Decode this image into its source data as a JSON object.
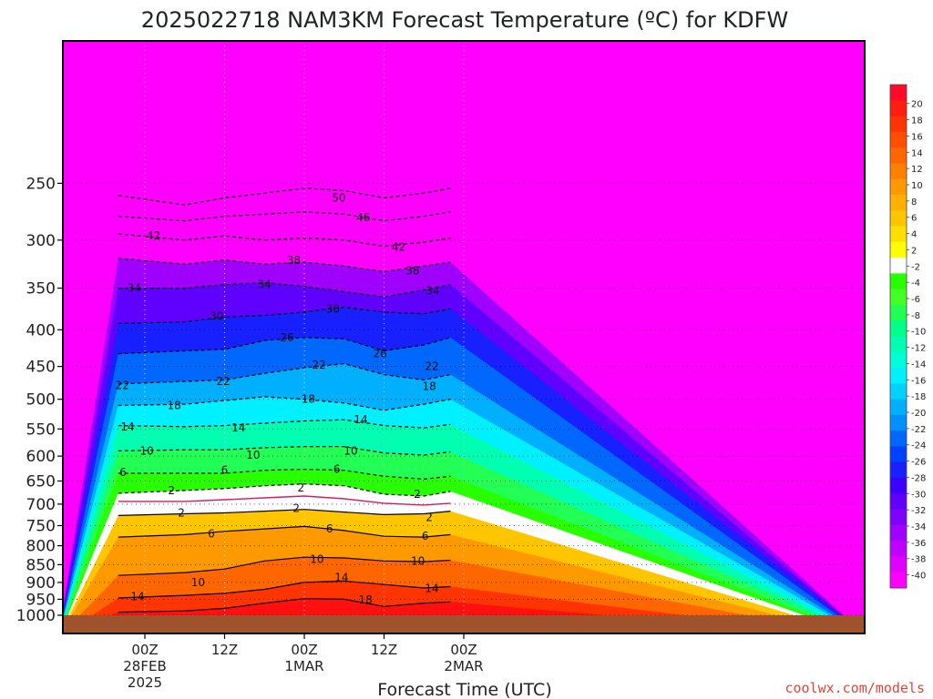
{
  "title": "2025022718 NAM3KM Forecast Temperature (ºC) for KDFW",
  "credit": "coolwx.com/models",
  "colors": {
    "ground": "#a0522d",
    "freezing_line": "#d81b60",
    "zero_band": "#ffffff"
  },
  "chart_data": {
    "type": "heatmap",
    "title": "2025022718 NAM3KM Forecast Temperature (ºC) for KDFW",
    "xlabel": "Forecast Time (UTC)",
    "ylabel": "",
    "x_range_hours": [
      -4,
      46
    ],
    "y_range_hPa": [
      200,
      1000
    ],
    "y_scale": "log",
    "grid": "dotted",
    "x_ticks": [
      {
        "hour": 0,
        "lines": [
          "00Z",
          "28FEB",
          "2025"
        ]
      },
      {
        "hour": 12,
        "lines": [
          "12Z"
        ]
      },
      {
        "hour": 24,
        "lines": [
          "00Z",
          "1MAR"
        ]
      },
      {
        "hour": 36,
        "lines": [
          "12Z"
        ]
      },
      {
        "hour": 48,
        "lines": [
          "00Z",
          "2MAR"
        ]
      }
    ],
    "y_ticks": [
      250,
      300,
      350,
      400,
      450,
      500,
      550,
      600,
      650,
      700,
      750,
      800,
      850,
      900,
      950,
      1000
    ],
    "colorbar": {
      "labels": [
        "20",
        "18",
        "16",
        "14",
        "12",
        "10",
        "8",
        "6",
        "4",
        "2",
        "-2",
        "-4",
        "-6",
        "-8",
        "-10",
        "-12",
        "-14",
        "-16",
        "-18",
        "-20",
        "-22",
        "-24",
        "-26",
        "-28",
        "-30",
        "-32",
        "-34",
        "-36",
        "-38",
        "-40"
      ],
      "colors": [
        "#ff0a2a",
        "#ff1d10",
        "#ff3400",
        "#ff4e00",
        "#ff6600",
        "#ff8000",
        "#ff9900",
        "#ffb000",
        "#ffc600",
        "#ffdf00",
        "#ffff00",
        "#ffffff",
        "#28ff00",
        "#44ff22",
        "#22ff55",
        "#00ff88",
        "#00ffb0",
        "#00ffd8",
        "#00f0ff",
        "#00d2ff",
        "#00b0ff",
        "#0090ff",
        "#0068ff",
        "#0040ff",
        "#1820ff",
        "#3c00ff",
        "#6000ff",
        "#8000ff",
        "#a000ff",
        "#c000ff",
        "#e000ff",
        "#ff00ff"
      ]
    },
    "series": [
      {
        "level": -50,
        "values": [
          [
            -4,
            260
          ],
          [
            6,
            268
          ],
          [
            12,
            262
          ],
          [
            18,
            258
          ],
          [
            24,
            254
          ],
          [
            30,
            256
          ],
          [
            36,
            262
          ],
          [
            42,
            258
          ],
          [
            46,
            254
          ]
        ]
      },
      {
        "level": -46,
        "values": [
          [
            -4,
            278
          ],
          [
            6,
            282
          ],
          [
            12,
            278
          ],
          [
            18,
            276
          ],
          [
            24,
            274
          ],
          [
            30,
            276
          ],
          [
            36,
            282
          ],
          [
            42,
            278
          ],
          [
            46,
            274
          ]
        ]
      },
      {
        "level": -42,
        "values": [
          [
            -4,
            294
          ],
          [
            6,
            300
          ],
          [
            12,
            296
          ],
          [
            18,
            300
          ],
          [
            24,
            298
          ],
          [
            30,
            300
          ],
          [
            36,
            306
          ],
          [
            42,
            302
          ],
          [
            46,
            298
          ]
        ]
      },
      {
        "level": -38,
        "values": [
          [
            -4,
            318
          ],
          [
            6,
            324
          ],
          [
            12,
            320
          ],
          [
            18,
            324
          ],
          [
            24,
            322
          ],
          [
            30,
            326
          ],
          [
            36,
            332
          ],
          [
            42,
            326
          ],
          [
            46,
            322
          ]
        ]
      },
      {
        "level": -34,
        "values": [
          [
            -4,
            350
          ],
          [
            6,
            350
          ],
          [
            12,
            346
          ],
          [
            18,
            344
          ],
          [
            24,
            348
          ],
          [
            30,
            354
          ],
          [
            36,
            360
          ],
          [
            42,
            352
          ],
          [
            46,
            346
          ]
        ]
      },
      {
        "level": -30,
        "values": [
          [
            -4,
            392
          ],
          [
            6,
            390
          ],
          [
            12,
            384
          ],
          [
            18,
            382
          ],
          [
            24,
            378
          ],
          [
            30,
            372
          ],
          [
            36,
            378
          ],
          [
            42,
            380
          ],
          [
            46,
            374
          ]
        ]
      },
      {
        "level": -26,
        "values": [
          [
            -4,
            432
          ],
          [
            6,
            428
          ],
          [
            12,
            426
          ],
          [
            18,
            414
          ],
          [
            24,
            410
          ],
          [
            30,
            412
          ],
          [
            36,
            428
          ],
          [
            42,
            420
          ],
          [
            46,
            410
          ]
        ]
      },
      {
        "level": -22,
        "values": [
          [
            -4,
            476
          ],
          [
            6,
            472
          ],
          [
            12,
            470
          ],
          [
            18,
            460
          ],
          [
            24,
            452
          ],
          [
            30,
            446
          ],
          [
            36,
            462
          ],
          [
            42,
            470
          ],
          [
            46,
            462
          ]
        ]
      },
      {
        "level": -18,
        "values": [
          [
            -4,
            510
          ],
          [
            6,
            508
          ],
          [
            12,
            502
          ],
          [
            18,
            496
          ],
          [
            24,
            500
          ],
          [
            30,
            506
          ],
          [
            36,
            518
          ],
          [
            42,
            508
          ],
          [
            46,
            500
          ]
        ]
      },
      {
        "level": -14,
        "values": [
          [
            -4,
            544
          ],
          [
            6,
            546
          ],
          [
            12,
            544
          ],
          [
            18,
            540
          ],
          [
            24,
            536
          ],
          [
            30,
            534
          ],
          [
            36,
            544
          ],
          [
            42,
            548
          ],
          [
            46,
            542
          ]
        ]
      },
      {
        "level": -10,
        "values": [
          [
            -4,
            590
          ],
          [
            6,
            588
          ],
          [
            12,
            588
          ],
          [
            18,
            584
          ],
          [
            24,
            582
          ],
          [
            30,
            582
          ],
          [
            36,
            594
          ],
          [
            42,
            598
          ],
          [
            46,
            592
          ]
        ]
      },
      {
        "level": -6,
        "values": [
          [
            -4,
            634
          ],
          [
            6,
            634
          ],
          [
            12,
            634
          ],
          [
            18,
            628
          ],
          [
            24,
            626
          ],
          [
            30,
            628
          ],
          [
            36,
            640
          ],
          [
            42,
            646
          ],
          [
            46,
            640
          ]
        ]
      },
      {
        "level": -2,
        "values": [
          [
            -4,
            676
          ],
          [
            6,
            670
          ],
          [
            12,
            666
          ],
          [
            18,
            660
          ],
          [
            24,
            656
          ],
          [
            30,
            660
          ],
          [
            36,
            678
          ],
          [
            42,
            682
          ],
          [
            46,
            672
          ]
        ]
      },
      {
        "level": 0,
        "values": [
          [
            -4,
            694
          ],
          [
            6,
            694
          ],
          [
            12,
            690
          ],
          [
            18,
            686
          ],
          [
            24,
            682
          ],
          [
            30,
            688
          ],
          [
            36,
            698
          ],
          [
            42,
            702
          ],
          [
            46,
            698
          ]
        ]
      },
      {
        "level": 2,
        "values": [
          [
            -4,
            726
          ],
          [
            6,
            722
          ],
          [
            12,
            720
          ],
          [
            18,
            716
          ],
          [
            24,
            712
          ],
          [
            30,
            718
          ],
          [
            36,
            724
          ],
          [
            42,
            722
          ],
          [
            46,
            716
          ]
        ]
      },
      {
        "level": 6,
        "values": [
          [
            -4,
            778
          ],
          [
            6,
            772
          ],
          [
            12,
            764
          ],
          [
            18,
            758
          ],
          [
            24,
            752
          ],
          [
            30,
            762
          ],
          [
            36,
            776
          ],
          [
            42,
            778
          ],
          [
            46,
            772
          ]
        ]
      },
      {
        "level": 10,
        "values": [
          [
            -4,
            880
          ],
          [
            6,
            872
          ],
          [
            12,
            862
          ],
          [
            18,
            840
          ],
          [
            24,
            830
          ],
          [
            30,
            832
          ],
          [
            36,
            840
          ],
          [
            42,
            842
          ],
          [
            46,
            838
          ]
        ]
      },
      {
        "level": 14,
        "values": [
          [
            -4,
            946
          ],
          [
            6,
            938
          ],
          [
            12,
            932
          ],
          [
            18,
            920
          ],
          [
            24,
            900
          ],
          [
            30,
            896
          ],
          [
            36,
            906
          ],
          [
            42,
            916
          ],
          [
            46,
            912
          ]
        ]
      },
      {
        "level": 18,
        "values": [
          [
            -4,
            990
          ],
          [
            6,
            986
          ],
          [
            12,
            978
          ],
          [
            18,
            962
          ],
          [
            24,
            948
          ],
          [
            30,
            950
          ],
          [
            36,
            972
          ],
          [
            42,
            962
          ],
          [
            46,
            958
          ]
        ]
      }
    ],
    "contour_labels": [
      {
        "text": "50",
        "hour": 29.2,
        "p": 262
      },
      {
        "text": "46",
        "hour": 32.9,
        "p": 279
      },
      {
        "text": "42",
        "hour": 1.3,
        "p": 296
      },
      {
        "text": "42",
        "hour": 38.2,
        "p": 307
      },
      {
        "text": "38",
        "hour": 22.4,
        "p": 320
      },
      {
        "text": "38",
        "hour": 40.3,
        "p": 331
      },
      {
        "text": "34",
        "hour": -1.6,
        "p": 350
      },
      {
        "text": "34",
        "hour": 18.0,
        "p": 346
      },
      {
        "text": "34",
        "hour": 43.3,
        "p": 353
      },
      {
        "text": "30",
        "hour": 10.8,
        "p": 383
      },
      {
        "text": "30",
        "hour": 28.3,
        "p": 374
      },
      {
        "text": "26",
        "hour": 21.4,
        "p": 410
      },
      {
        "text": "26",
        "hour": 35.4,
        "p": 432
      },
      {
        "text": "22",
        "hour": -3.4,
        "p": 478
      },
      {
        "text": "22",
        "hour": 11.8,
        "p": 472
      },
      {
        "text": "22",
        "hour": 26.2,
        "p": 448
      },
      {
        "text": "22",
        "hour": 43.2,
        "p": 450
      },
      {
        "text": "18",
        "hour": 4.4,
        "p": 510
      },
      {
        "text": "18",
        "hour": 24.6,
        "p": 500
      },
      {
        "text": "18",
        "hour": 42.8,
        "p": 480
      },
      {
        "text": "14",
        "hour": -2.6,
        "p": 546
      },
      {
        "text": "14",
        "hour": 14.1,
        "p": 548
      },
      {
        "text": "14",
        "hour": 32.5,
        "p": 534
      },
      {
        "text": "10",
        "hour": 0.3,
        "p": 590
      },
      {
        "text": "10",
        "hour": 16.3,
        "p": 598
      },
      {
        "text": "10",
        "hour": 31.0,
        "p": 590
      },
      {
        "text": "6",
        "hour": -3.3,
        "p": 632
      },
      {
        "text": "6",
        "hour": 12.0,
        "p": 628
      },
      {
        "text": "6",
        "hour": 28.9,
        "p": 626
      },
      {
        "text": "2",
        "hour": 4.0,
        "p": 670
      },
      {
        "text": "2",
        "hour": 23.5,
        "p": 664
      },
      {
        "text": "2",
        "hour": 41.0,
        "p": 678
      },
      {
        "text": "2",
        "hour": 5.5,
        "p": 720
      },
      {
        "text": "2",
        "hour": 22.8,
        "p": 710
      },
      {
        "text": "2",
        "hour": 42.8,
        "p": 730
      },
      {
        "text": "6",
        "hour": 10.0,
        "p": 770
      },
      {
        "text": "6",
        "hour": 27.8,
        "p": 758
      },
      {
        "text": "6",
        "hour": 42.2,
        "p": 776
      },
      {
        "text": "10",
        "hour": 8.0,
        "p": 900
      },
      {
        "text": "10",
        "hour": 25.9,
        "p": 836
      },
      {
        "text": "10",
        "hour": 41.1,
        "p": 840
      },
      {
        "text": "14",
        "hour": -1.1,
        "p": 942
      },
      {
        "text": "14",
        "hour": 29.6,
        "p": 886
      },
      {
        "text": "14",
        "hour": 43.2,
        "p": 918
      },
      {
        "text": "18",
        "hour": 33.2,
        "p": 952
      }
    ]
  }
}
